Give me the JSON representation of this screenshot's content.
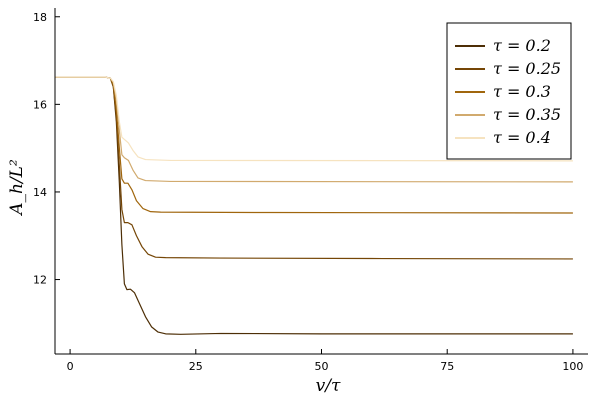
{
  "chart_data": {
    "type": "line",
    "xlabel": "v/τ",
    "ylabel": "A_h/L²",
    "xlim": [
      -3,
      103
    ],
    "ylim": [
      10.3,
      18.2
    ],
    "xticks": [
      0,
      25,
      50,
      75,
      100
    ],
    "xtick_labels": [
      "0",
      "25",
      "50",
      "75",
      "100"
    ],
    "yticks": [
      12,
      14,
      16,
      18
    ],
    "ytick_labels": [
      "12",
      "14",
      "16",
      "18"
    ],
    "grid": false,
    "legend_position": "top-right",
    "series": [
      {
        "name": "τ = 0.2",
        "color": "#4d2e06",
        "points": [
          [
            -3,
            16.62
          ],
          [
            7,
            16.62
          ],
          [
            8,
            16.6
          ],
          [
            8.6,
            16.4
          ],
          [
            9.2,
            15.6
          ],
          [
            9.8,
            14.2
          ],
          [
            10.3,
            12.8
          ],
          [
            10.8,
            11.9
          ],
          [
            11.3,
            11.77
          ],
          [
            12,
            11.78
          ],
          [
            12.8,
            11.7
          ],
          [
            13.8,
            11.45
          ],
          [
            15,
            11.15
          ],
          [
            16.2,
            10.92
          ],
          [
            17.5,
            10.8
          ],
          [
            19,
            10.76
          ],
          [
            22,
            10.75
          ],
          [
            30,
            10.77
          ],
          [
            50,
            10.76
          ],
          [
            100,
            10.76
          ]
        ]
      },
      {
        "name": "τ = 0.25",
        "color": "#754606",
        "points": [
          [
            -3,
            16.62
          ],
          [
            7,
            16.62
          ],
          [
            8,
            16.6
          ],
          [
            8.6,
            16.4
          ],
          [
            9.2,
            15.7
          ],
          [
            9.8,
            14.6
          ],
          [
            10.3,
            13.6
          ],
          [
            10.8,
            13.3
          ],
          [
            11.5,
            13.3
          ],
          [
            12.3,
            13.25
          ],
          [
            13.2,
            13.0
          ],
          [
            14.3,
            12.75
          ],
          [
            15.5,
            12.58
          ],
          [
            17,
            12.51
          ],
          [
            19,
            12.5
          ],
          [
            30,
            12.49
          ],
          [
            60,
            12.48
          ],
          [
            100,
            12.47
          ]
        ]
      },
      {
        "name": "τ = 0.3",
        "color": "#a0660d",
        "points": [
          [
            -3,
            16.62
          ],
          [
            7,
            16.62
          ],
          [
            8,
            16.6
          ],
          [
            8.6,
            16.45
          ],
          [
            9.2,
            15.9
          ],
          [
            9.8,
            15.0
          ],
          [
            10.3,
            14.3
          ],
          [
            10.8,
            14.2
          ],
          [
            11.5,
            14.2
          ],
          [
            12.3,
            14.05
          ],
          [
            13.2,
            13.8
          ],
          [
            14.5,
            13.62
          ],
          [
            16,
            13.55
          ],
          [
            18,
            13.54
          ],
          [
            40,
            13.53
          ],
          [
            100,
            13.52
          ]
        ]
      },
      {
        "name": "τ = 0.35",
        "color": "#d1aa6e",
        "points": [
          [
            -3,
            16.62
          ],
          [
            7,
            16.62
          ],
          [
            8,
            16.6
          ],
          [
            8.6,
            16.5
          ],
          [
            9.2,
            16.1
          ],
          [
            9.8,
            15.4
          ],
          [
            10.3,
            14.85
          ],
          [
            10.8,
            14.78
          ],
          [
            11.6,
            14.72
          ],
          [
            12.5,
            14.5
          ],
          [
            13.5,
            14.32
          ],
          [
            15,
            14.26
          ],
          [
            20,
            14.24
          ],
          [
            100,
            14.23
          ]
        ]
      },
      {
        "name": "τ = 0.4",
        "color": "#f6e3c0",
        "points": [
          [
            -3,
            16.62
          ],
          [
            7,
            16.62
          ],
          [
            8,
            16.6
          ],
          [
            8.6,
            16.52
          ],
          [
            9.2,
            16.2
          ],
          [
            9.8,
            15.6
          ],
          [
            10.3,
            15.25
          ],
          [
            10.8,
            15.2
          ],
          [
            11.6,
            15.12
          ],
          [
            12.5,
            14.95
          ],
          [
            13.5,
            14.8
          ],
          [
            15,
            14.74
          ],
          [
            20,
            14.72
          ],
          [
            100,
            14.71
          ]
        ]
      }
    ]
  }
}
